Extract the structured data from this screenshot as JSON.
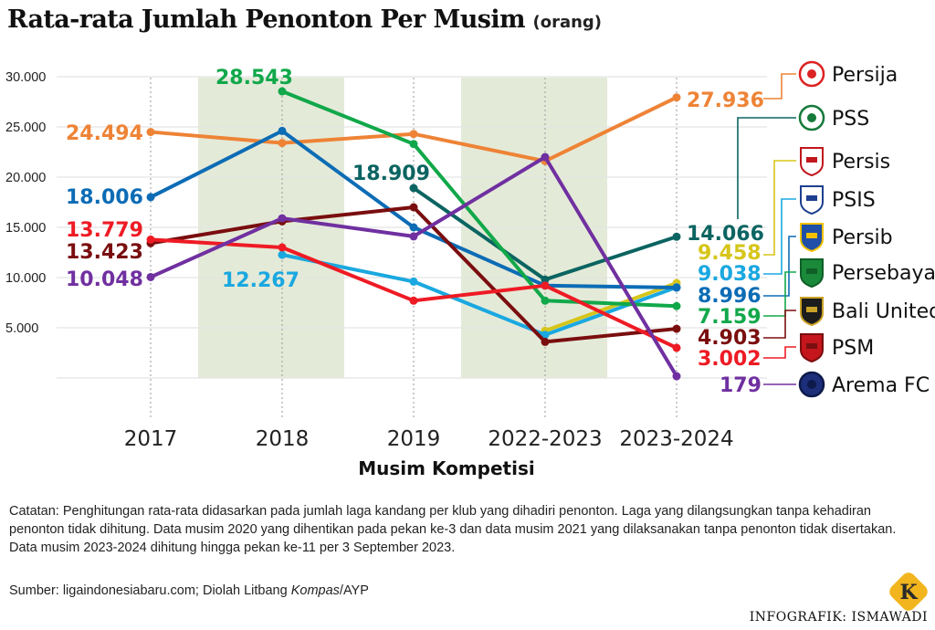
{
  "title": "Rata-rata Jumlah Penonton Per Musim",
  "unit": "(orang)",
  "chart_data": {
    "type": "line",
    "x": [
      "2017",
      "2018",
      "2019",
      "2022-2023",
      "2023-2024"
    ],
    "xlabel": "Musim Kompetisi",
    "ylabel": "",
    "ylim": [
      0,
      30000
    ],
    "yticks": [
      5000,
      10000,
      15000,
      20000,
      25000,
      30000
    ],
    "ytick_labels": [
      "5.000",
      "10.000",
      "15.000",
      "20.000",
      "25.000",
      "30.000"
    ],
    "grid": true,
    "highlighted_x": [
      "2018",
      "2022-2023"
    ],
    "series": [
      {
        "name": "Persija",
        "color": "#ee8336",
        "values": [
          24494,
          23400,
          24300,
          21600,
          27936
        ],
        "labels": {
          "0": "24.494",
          "4": "27.936"
        }
      },
      {
        "name": "PSS",
        "color": "#0b6461",
        "values": [
          null,
          null,
          18909,
          9800,
          14066
        ],
        "labels": {
          "2": "18.909",
          "4": "14.066"
        }
      },
      {
        "name": "Persis",
        "color": "#d6c51a",
        "values": [
          null,
          null,
          null,
          4700,
          9458
        ],
        "labels": {
          "4": "9.458"
        }
      },
      {
        "name": "PSIS",
        "color": "#1aa8e0",
        "values": [
          null,
          12267,
          9600,
          4300,
          9038
        ],
        "labels": {
          "1": "12.267",
          "4": "9.038"
        }
      },
      {
        "name": "Persib",
        "color": "#0c6cb5",
        "values": [
          18006,
          24600,
          15000,
          9200,
          8996
        ],
        "labels": {
          "0": "18.006",
          "4": "8.996"
        }
      },
      {
        "name": "Persebaya",
        "color": "#11a84a",
        "values": [
          null,
          28543,
          23300,
          7700,
          7159
        ],
        "labels": {
          "1": "28.543",
          "4": "7.159"
        }
      },
      {
        "name": "Bali United",
        "color": "#7a0e0f",
        "values": [
          13423,
          15600,
          17000,
          3600,
          4903
        ],
        "labels": {
          "0": "13.423",
          "4": "4.903"
        }
      },
      {
        "name": "PSM",
        "color": "#ee1b24",
        "values": [
          13779,
          13000,
          7700,
          9200,
          3002
        ],
        "labels": {
          "0": "13.779",
          "4": "3.002"
        }
      },
      {
        "name": "Arema FC",
        "color": "#7030a0",
        "values": [
          10048,
          15900,
          14100,
          22000,
          179
        ],
        "labels": {
          "0": "10.048",
          "4": "179"
        }
      }
    ]
  },
  "legend": [
    "Persija",
    "PSS",
    "Persis",
    "PSIS",
    "Persib",
    "Persebaya",
    "Bali United",
    "PSM",
    "Arema FC"
  ],
  "note": "Catatan: Penghitungan rata-rata didasarkan pada jumlah laga kandang per klub yang dihadiri penonton. Laga yang dilangsungkan tanpa kehadiran penonton tidak dihitung. Data musim 2020 yang dihentikan pada pekan ke-3 dan data musim 2021 yang dilaksanakan tanpa penonton tidak disertakan. Data musim 2023-2024 dihitung hingga pekan ke-11 per 3 September 2023.",
  "source": {
    "prefix": "Sumber: ligaindonesiabaru.com; Diolah Litbang ",
    "publisher": "Kompas",
    "suffix": "/AYP"
  },
  "credit": "INFOGRAFIK: ISMAWADI",
  "logo_letter": "K",
  "colors": {
    "highlight_band": "#e4ead8",
    "grid": "#e3e3e3",
    "axis_text": "#222222",
    "logo_gold": "#f2b51e"
  }
}
